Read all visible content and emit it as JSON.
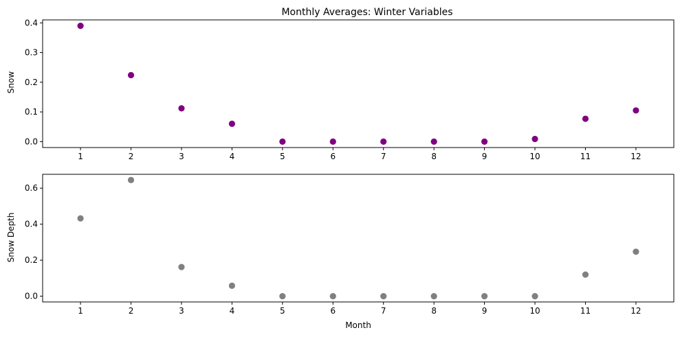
{
  "chart_data": [
    {
      "type": "scatter",
      "title": "Monthly Averages: Winter Variables",
      "xlabel": "",
      "ylabel": "Snow",
      "x": [
        1,
        2,
        3,
        4,
        5,
        6,
        7,
        8,
        9,
        10,
        11,
        12
      ],
      "y": [
        0.39,
        0.224,
        0.112,
        0.06,
        0.0,
        0.0,
        0.0,
        0.0,
        0.0,
        0.009,
        0.077,
        0.105
      ],
      "xticks": [
        "1",
        "2",
        "3",
        "4",
        "5",
        "6",
        "7",
        "8",
        "9",
        "10",
        "11",
        "12"
      ],
      "yticks": [
        "0.0",
        "0.1",
        "0.2",
        "0.3",
        "0.4"
      ],
      "xlim": [
        0.25,
        12.75
      ],
      "ylim": [
        -0.02,
        0.41
      ],
      "color": "#800080",
      "grid": false
    },
    {
      "type": "scatter",
      "title": "",
      "xlabel": "Month",
      "ylabel": "Snow Depth",
      "x": [
        1,
        2,
        3,
        4,
        5,
        6,
        7,
        8,
        9,
        10,
        11,
        12
      ],
      "y": [
        0.432,
        0.645,
        0.162,
        0.058,
        0.0,
        0.0,
        0.0,
        0.0,
        0.0,
        0.0,
        0.12,
        0.247
      ],
      "xticks": [
        "1",
        "2",
        "3",
        "4",
        "5",
        "6",
        "7",
        "8",
        "9",
        "10",
        "11",
        "12"
      ],
      "yticks": [
        "0.0",
        "0.2",
        "0.4",
        "0.6"
      ],
      "xlim": [
        0.25,
        12.75
      ],
      "ylim": [
        -0.032,
        0.677
      ],
      "color": "#808080",
      "grid": false
    }
  ]
}
